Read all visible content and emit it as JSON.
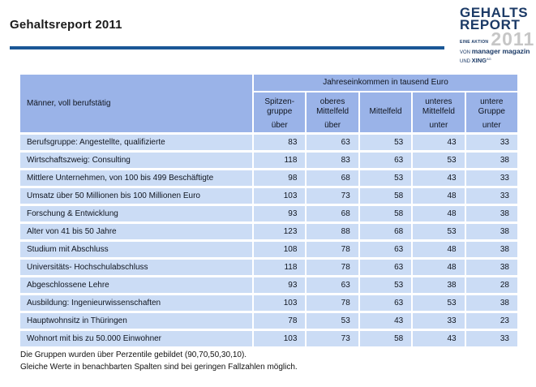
{
  "page": {
    "title": "Gehaltsreport 2011"
  },
  "logo": {
    "line1": "GEHALTS",
    "line2": "REPORT",
    "eine_aktion": "EINE AKTION",
    "year": "2011",
    "von": "VON",
    "brand1": "manager magazin",
    "und": "UND",
    "brand2": "XING",
    "brand2_suffix": "AG"
  },
  "table": {
    "row_header": "Männer, voll berufstätig",
    "band_header": "Jahreseinkommen in tausend Euro",
    "columns": [
      {
        "lines": [
          "Spitzen-",
          "gruppe"
        ],
        "qualifier": "über"
      },
      {
        "lines": [
          "oberes",
          "Mittelfeld"
        ],
        "qualifier": "über"
      },
      {
        "lines": [
          "Mittelfeld"
        ],
        "qualifier": ""
      },
      {
        "lines": [
          "unteres",
          "Mittelfeld"
        ],
        "qualifier": "unter"
      },
      {
        "lines": [
          "untere",
          "Gruppe"
        ],
        "qualifier": "unter"
      }
    ],
    "rows": [
      {
        "label": "Berufsgruppe: Angestellte, qualifizierte",
        "values": [
          83,
          63,
          53,
          43,
          33
        ]
      },
      {
        "label": "Wirtschaftszweig: Consulting",
        "values": [
          118,
          83,
          63,
          53,
          38
        ]
      },
      {
        "label": "Mittlere Unternehmen, von 100 bis 499 Beschäftigte",
        "values": [
          98,
          68,
          53,
          43,
          33
        ]
      },
      {
        "label": "Umsatz über 50 Millionen bis 100 Millionen Euro",
        "values": [
          103,
          73,
          58,
          48,
          33
        ]
      },
      {
        "label": "Forschung & Entwicklung",
        "values": [
          93,
          68,
          58,
          48,
          38
        ]
      },
      {
        "label": "Alter von 41 bis 50 Jahre",
        "values": [
          123,
          88,
          68,
          53,
          38
        ]
      },
      {
        "label": "Studium mit Abschluss",
        "values": [
          108,
          78,
          63,
          48,
          38
        ]
      },
      {
        "label": "Universitäts- Hochschulabschluss",
        "values": [
          118,
          78,
          63,
          48,
          38
        ]
      },
      {
        "label": "Abgeschlossene Lehre",
        "values": [
          93,
          63,
          53,
          38,
          28
        ]
      },
      {
        "label": "Ausbildung: Ingenieurwissenschaften",
        "values": [
          103,
          78,
          63,
          53,
          38
        ]
      },
      {
        "label": "Hauptwohnsitz in Thüringen",
        "values": [
          78,
          53,
          43,
          33,
          23
        ]
      },
      {
        "label": "Wohnort mit bis zu 50.000 Einwohner",
        "values": [
          103,
          73,
          58,
          43,
          33
        ]
      }
    ]
  },
  "footnotes": {
    "line1": "Die Gruppen wurden über Perzentile gebildet (90,70,50,30,10).",
    "line2": "Gleiche Werte in benachbarten Spalten sind bei geringen Fallzahlen möglich."
  },
  "colors": {
    "header_blue": "#9AB3E8",
    "row_blue": "#CBDCF5",
    "rule_blue": "#1A5796",
    "logo_navy": "#1B3A66",
    "logo_gray": "#C6C6C6",
    "table_text": "#10151F"
  }
}
